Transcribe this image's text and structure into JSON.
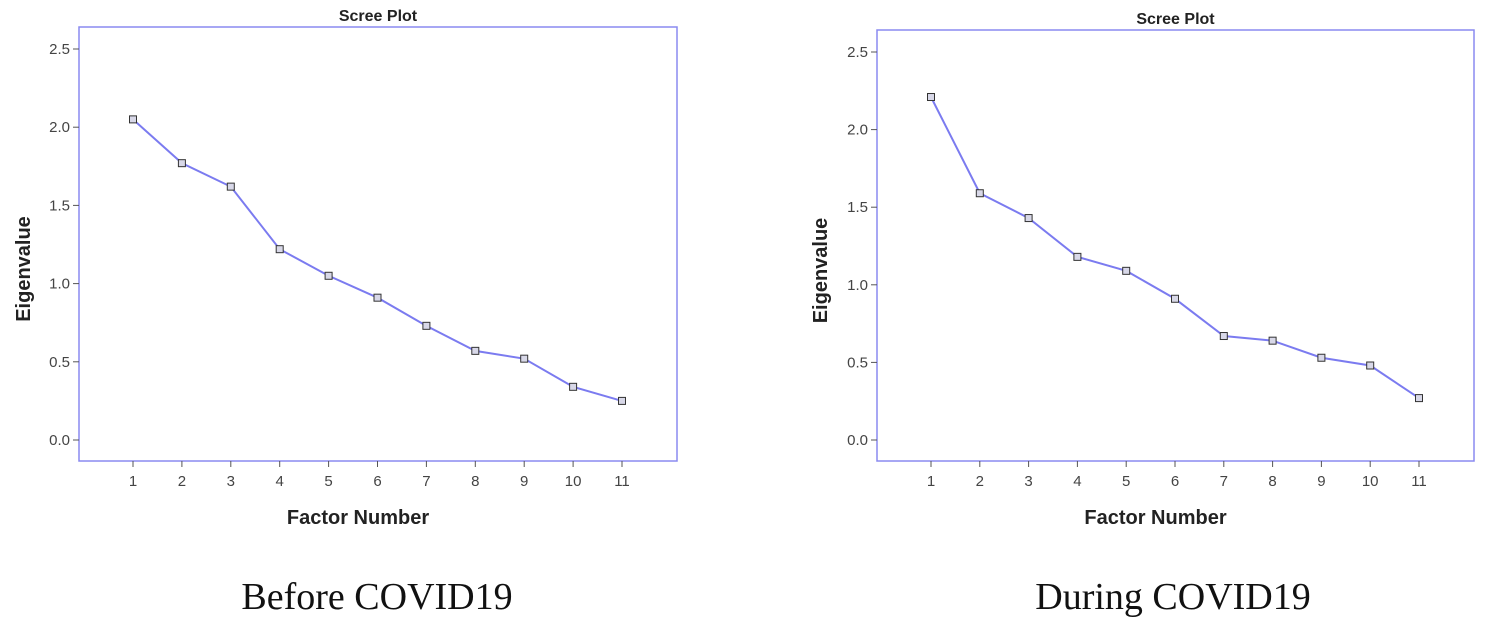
{
  "chart_data": [
    {
      "type": "line",
      "title": "Scree Plot",
      "xlabel": "Factor Number",
      "ylabel": "Eigenvalue",
      "caption": "Before COVID19",
      "x": [
        1,
        2,
        3,
        4,
        5,
        6,
        7,
        8,
        9,
        10,
        11
      ],
      "y": [
        2.05,
        1.77,
        1.62,
        1.22,
        1.05,
        0.91,
        0.73,
        0.57,
        0.52,
        0.34,
        0.25
      ],
      "ylim": [
        0.0,
        2.5
      ],
      "yticks": [
        "0.0",
        "0.5",
        "1.0",
        "1.5",
        "2.0",
        "2.5"
      ],
      "line_color": "#7b7bf0",
      "grid": false
    },
    {
      "type": "line",
      "title": "Scree Plot",
      "xlabel": "Factor Number",
      "ylabel": "Eigenvalue",
      "caption": "During COVID19",
      "x": [
        1,
        2,
        3,
        4,
        5,
        6,
        7,
        8,
        9,
        10,
        11
      ],
      "y": [
        2.21,
        1.59,
        1.43,
        1.18,
        1.09,
        0.91,
        0.67,
        0.64,
        0.53,
        0.48,
        0.27
      ],
      "ylim": [
        0.0,
        2.5
      ],
      "yticks": [
        "0.0",
        "0.5",
        "1.0",
        "1.5",
        "2.0",
        "2.5"
      ],
      "line_color": "#7b7bf0",
      "grid": false
    }
  ]
}
